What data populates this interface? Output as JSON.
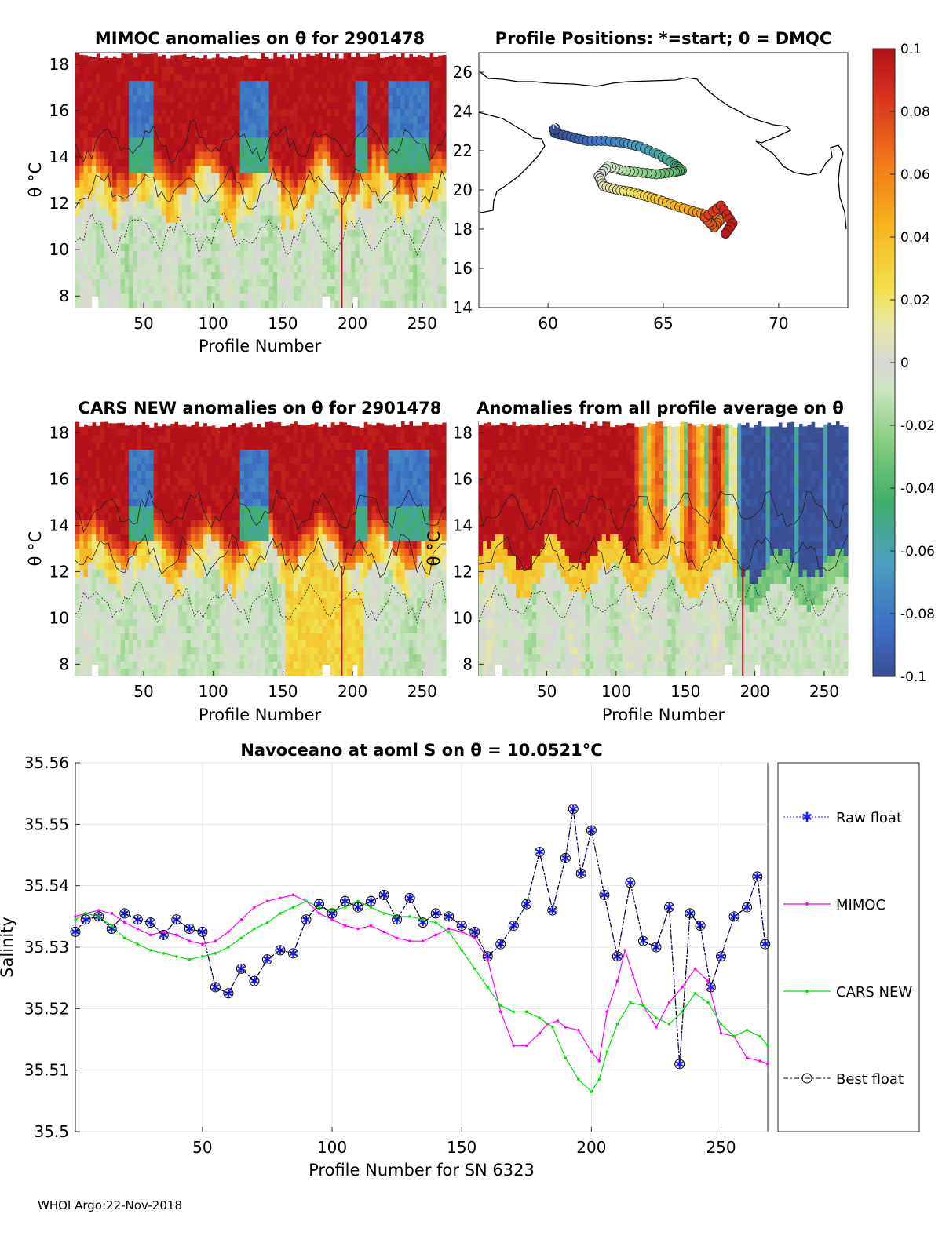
{
  "footer": "WHOI Argo:22-Nov-2018",
  "colorbar": {
    "ticks": [
      {
        "v": 0.1,
        "label": "0.1"
      },
      {
        "v": 0.08,
        "label": "0.08"
      },
      {
        "v": 0.06,
        "label": "0.06"
      },
      {
        "v": 0.04,
        "label": "0.04"
      },
      {
        "v": 0.02,
        "label": "0.02"
      },
      {
        "v": 0,
        "label": "0"
      },
      {
        "v": -0.02,
        "label": "-0.02"
      },
      {
        "v": -0.04,
        "label": "-0.04"
      },
      {
        "v": -0.06,
        "label": "-0.06"
      },
      {
        "v": -0.08,
        "label": "-0.08"
      },
      {
        "v": -0.1,
        "label": "-0.1"
      }
    ]
  },
  "chart_data": [
    {
      "type": "heatmap",
      "title": "MIMOC anomalies on θ  for 2901478",
      "xlabel": "Profile Number",
      "ylabel": "θ °C",
      "xlim": [
        1,
        267
      ],
      "ylim": [
        7.5,
        18.5
      ],
      "xticks": [
        50,
        100,
        150,
        200,
        250
      ],
      "yticks": [
        8,
        10,
        12,
        14,
        16,
        18
      ],
      "color_range": [
        -0.1,
        0.1
      ],
      "pattern": "warm anomalies (up to +0.1) above ~13-14 °C, near-zero below 12 °C"
    },
    {
      "type": "scatter",
      "title": "Profile Positions: *=start; 0 = DMQC",
      "xlim": [
        57,
        73
      ],
      "ylim": [
        14,
        27
      ],
      "xticks": [
        60,
        65,
        70
      ],
      "yticks": [
        14,
        16,
        18,
        20,
        22,
        24,
        26
      ],
      "start_point": [
        60.3,
        23.1
      ],
      "track_lon": [
        60.3,
        61.0,
        61.7,
        62.5,
        63.3,
        64.0,
        64.8,
        65.5,
        65.8,
        65.4,
        64.7,
        63.9,
        63.2,
        62.6,
        62.2,
        62.4,
        63.0,
        63.6,
        64.2,
        64.8,
        65.5,
        66.3,
        67.0,
        67.5,
        67.2,
        66.8,
        67.5,
        68.0,
        67.6
      ],
      "track_lat": [
        22.9,
        22.7,
        22.5,
        22.5,
        22.4,
        22.2,
        21.8,
        21.3,
        21.0,
        20.9,
        20.8,
        20.9,
        21.0,
        21.2,
        20.7,
        20.2,
        20.0,
        19.9,
        19.7,
        19.5,
        19.2,
        18.9,
        18.7,
        18.5,
        18.1,
        18.6,
        19.2,
        18.3,
        17.6
      ],
      "coastline_note": "Arabian Sea coastline (Oman, Pakistan, India)"
    },
    {
      "type": "heatmap",
      "title": "CARS NEW anomalies on θ for 2901478",
      "xlabel": "Profile Number",
      "ylabel": "θ °C",
      "xlim": [
        1,
        267
      ],
      "ylim": [
        7.5,
        18.5
      ],
      "xticks": [
        50,
        100,
        150,
        200,
        250
      ],
      "yticks": [
        8,
        10,
        12,
        14,
        16,
        18
      ],
      "color_range": [
        -0.1,
        0.1
      ]
    },
    {
      "type": "heatmap",
      "title": "Anomalies from all profile average on θ",
      "xlabel": "Profile Number",
      "ylabel": "θ °C",
      "xlim": [
        1,
        267
      ],
      "ylim": [
        7.5,
        18.5
      ],
      "xticks": [
        50,
        100,
        150,
        200,
        250
      ],
      "yticks": [
        8,
        10,
        12,
        14,
        16,
        18
      ],
      "color_range": [
        -0.1,
        0.1
      ],
      "pattern": "positive anomalies before profile ~185, strong negative (-0.1) above 13 °C after ~190"
    },
    {
      "type": "line",
      "title": "Navoceano at aoml S on θ = 10.0521°C",
      "xlabel": "Profile Number for SN 6323",
      "ylabel": "Salinity",
      "xlim": [
        1,
        268
      ],
      "ylim": [
        35.5,
        35.56
      ],
      "xticks": [
        50,
        100,
        150,
        200,
        250
      ],
      "yticks": [
        35.5,
        35.51,
        35.52,
        35.53,
        35.54,
        35.55,
        35.56
      ],
      "ytick_labels": [
        "35.5",
        "35.51",
        "35.52",
        "35.53",
        "35.54",
        "35.55",
        "35.56"
      ],
      "series": [
        {
          "name": "Raw float",
          "color": "#1a1aff",
          "x": [
            1,
            5,
            10,
            15,
            20,
            25,
            30,
            35,
            40,
            45,
            50,
            55,
            60,
            65,
            70,
            75,
            80,
            85,
            90,
            95,
            100,
            105,
            110,
            115,
            120,
            125,
            130,
            135,
            140,
            145,
            150,
            155,
            160,
            165,
            170,
            175,
            180,
            185,
            190,
            193,
            196,
            200,
            205,
            210,
            215,
            220,
            225,
            230,
            234,
            238,
            242,
            246,
            250,
            255,
            260,
            264,
            267
          ],
          "y": [
            35.5325,
            35.5345,
            35.535,
            35.533,
            35.5355,
            35.5345,
            35.534,
            35.532,
            35.5345,
            35.533,
            35.5325,
            35.5235,
            35.5225,
            35.5265,
            35.5245,
            35.528,
            35.5295,
            35.529,
            35.5345,
            35.537,
            35.5355,
            35.5375,
            35.5365,
            35.5375,
            35.5385,
            35.5345,
            35.538,
            35.534,
            35.5355,
            35.535,
            35.5335,
            35.5325,
            35.5285,
            35.5305,
            35.5335,
            35.537,
            35.5455,
            35.536,
            35.5445,
            35.5525,
            35.542,
            35.549,
            35.5385,
            35.5285,
            35.5405,
            35.531,
            35.53,
            35.5365,
            35.511,
            35.5355,
            35.5335,
            35.5235,
            35.5285,
            35.535,
            35.5365,
            35.5415,
            35.5305
          ]
        },
        {
          "name": "MIMOC",
          "color": "#ff00ff",
          "x": [
            1,
            5,
            10,
            15,
            20,
            25,
            30,
            35,
            40,
            45,
            50,
            55,
            60,
            65,
            70,
            75,
            80,
            85,
            90,
            95,
            100,
            105,
            110,
            115,
            120,
            125,
            130,
            135,
            140,
            145,
            150,
            155,
            160,
            165,
            170,
            175,
            180,
            183,
            187,
            190,
            195,
            200,
            203,
            206,
            210,
            213,
            216,
            220,
            225,
            230,
            235,
            240,
            245,
            250,
            255,
            260,
            265,
            268
          ],
          "y": [
            35.535,
            35.5355,
            35.536,
            35.5355,
            35.534,
            35.533,
            35.532,
            35.5325,
            35.532,
            35.531,
            35.5305,
            35.531,
            35.5325,
            35.5345,
            35.5365,
            35.5375,
            35.538,
            35.5385,
            35.5375,
            35.5355,
            35.5345,
            35.5335,
            35.533,
            35.5335,
            35.5325,
            35.5315,
            35.531,
            35.531,
            35.532,
            35.533,
            35.5325,
            35.5315,
            35.528,
            35.5195,
            35.514,
            35.514,
            35.516,
            35.5175,
            35.518,
            35.517,
            35.5165,
            35.513,
            35.5115,
            35.5195,
            35.5245,
            35.5295,
            35.5255,
            35.5205,
            35.517,
            35.521,
            35.5235,
            35.5265,
            35.5245,
            35.516,
            35.5155,
            35.512,
            35.5115,
            35.511
          ]
        },
        {
          "name": "CARS NEW",
          "color": "#00e600",
          "x": [
            1,
            5,
            10,
            15,
            20,
            25,
            30,
            35,
            40,
            45,
            50,
            55,
            60,
            65,
            70,
            75,
            80,
            85,
            90,
            95,
            100,
            105,
            110,
            115,
            120,
            125,
            130,
            135,
            140,
            145,
            150,
            155,
            160,
            165,
            170,
            175,
            180,
            185,
            190,
            195,
            200,
            203,
            206,
            210,
            215,
            220,
            225,
            230,
            235,
            240,
            245,
            250,
            255,
            260,
            265,
            268
          ],
          "y": [
            35.5345,
            35.5355,
            35.535,
            35.5335,
            35.5315,
            35.5305,
            35.5295,
            35.529,
            35.5285,
            35.528,
            35.5285,
            35.529,
            35.53,
            35.5315,
            35.533,
            35.534,
            35.5355,
            35.5365,
            35.5375,
            35.5365,
            35.536,
            35.5365,
            35.5375,
            35.5365,
            35.5355,
            35.535,
            35.535,
            35.5345,
            35.534,
            35.5325,
            35.5295,
            35.5265,
            35.5235,
            35.5205,
            35.5195,
            35.5195,
            35.5185,
            35.517,
            35.512,
            35.5085,
            35.5065,
            35.5085,
            35.513,
            35.5175,
            35.521,
            35.5205,
            35.5185,
            35.5175,
            35.5195,
            35.5225,
            35.521,
            35.5175,
            35.5155,
            35.5165,
            35.5155,
            35.514
          ]
        },
        {
          "name": "Best float",
          "color": "#000000",
          "x": [
            1,
            5,
            10,
            15,
            20,
            25,
            30,
            35,
            40,
            45,
            50,
            55,
            60,
            65,
            70,
            75,
            80,
            85,
            90,
            95,
            100,
            105,
            110,
            115,
            120,
            125,
            130,
            135,
            140,
            145,
            150,
            155,
            160,
            165,
            170,
            175,
            180,
            185,
            190,
            193,
            196,
            200,
            205,
            210,
            215,
            220,
            225,
            230,
            234,
            238,
            242,
            246,
            250,
            255,
            260,
            264,
            267
          ],
          "y": [
            35.5325,
            35.5345,
            35.535,
            35.533,
            35.5355,
            35.5345,
            35.534,
            35.532,
            35.5345,
            35.533,
            35.5325,
            35.5235,
            35.5225,
            35.5265,
            35.5245,
            35.528,
            35.5295,
            35.529,
            35.5345,
            35.537,
            35.5355,
            35.5375,
            35.5365,
            35.5375,
            35.5385,
            35.5345,
            35.538,
            35.534,
            35.5355,
            35.535,
            35.5335,
            35.5325,
            35.5285,
            35.5305,
            35.5335,
            35.537,
            35.5455,
            35.536,
            35.5445,
            35.5525,
            35.542,
            35.549,
            35.5385,
            35.5285,
            35.5405,
            35.531,
            35.53,
            35.5365,
            35.511,
            35.5355,
            35.5335,
            35.5235,
            35.5285,
            35.535,
            35.5365,
            35.5415,
            35.5305
          ]
        }
      ],
      "legend": [
        "Raw float",
        "MIMOC",
        "CARS NEW",
        "Best float"
      ],
      "legend_placement": "right, outside plot"
    }
  ]
}
